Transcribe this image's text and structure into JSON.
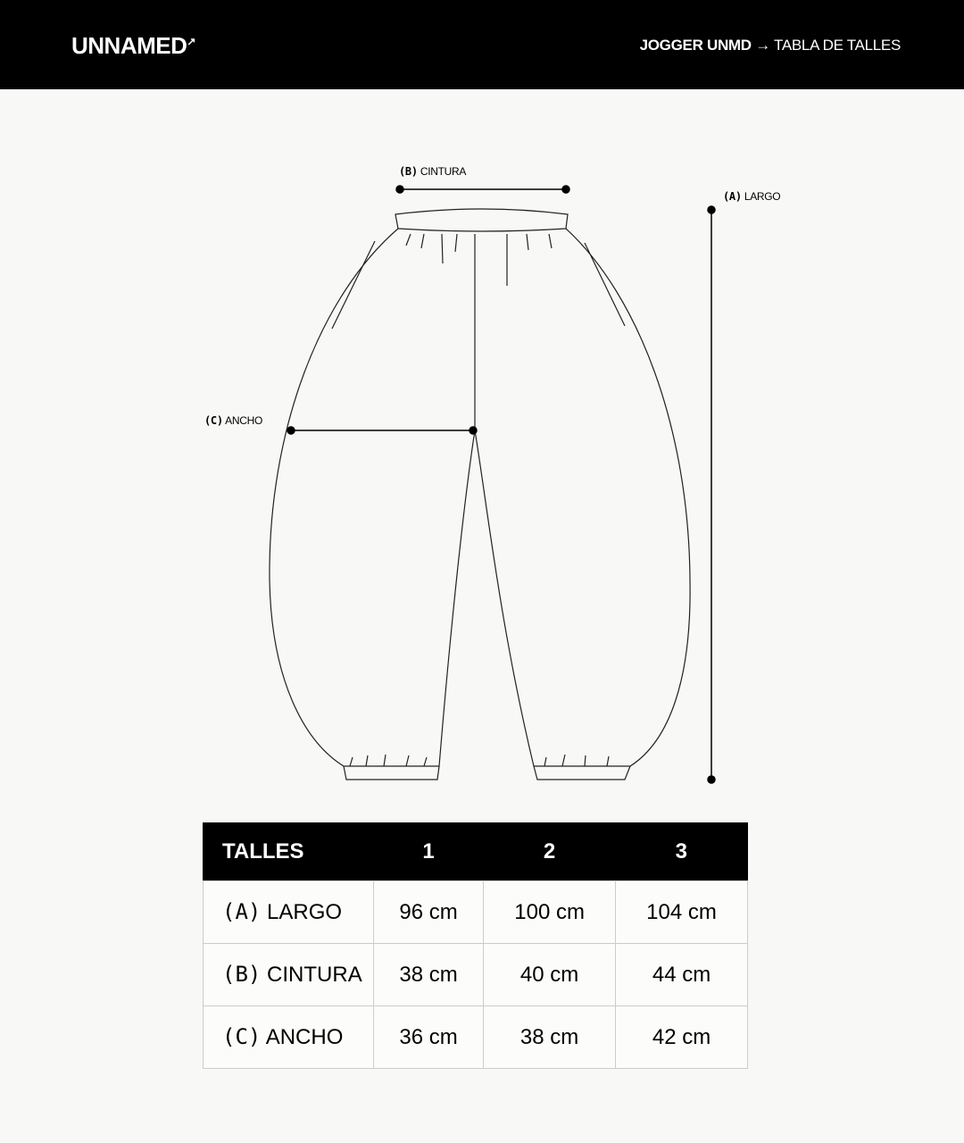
{
  "header": {
    "logo": "UNNAMED",
    "logo_mark": "↗",
    "breadcrumb_product": "JOGGER UNMD",
    "breadcrumb_arrow": "→",
    "breadcrumb_page": "TABLA DE TALLES"
  },
  "diagram": {
    "labels": [
      {
        "key": "(B)",
        "name": "CINTURA"
      },
      {
        "key": "(A)",
        "name": "LARGO"
      },
      {
        "key": "(C)",
        "name": "ANCHO"
      }
    ]
  },
  "table": {
    "header": [
      "TALLES",
      "1",
      "2",
      "3"
    ],
    "rows": [
      {
        "key": "(A)",
        "name": "LARGO",
        "values": [
          "96 cm",
          "100 cm",
          "104 cm"
        ]
      },
      {
        "key": "(B)",
        "name": "CINTURA",
        "values": [
          "38 cm",
          "40 cm",
          "44 cm"
        ]
      },
      {
        "key": "(C)",
        "name": "ANCHO",
        "values": [
          "36 cm",
          "38 cm",
          "42 cm"
        ]
      }
    ]
  }
}
